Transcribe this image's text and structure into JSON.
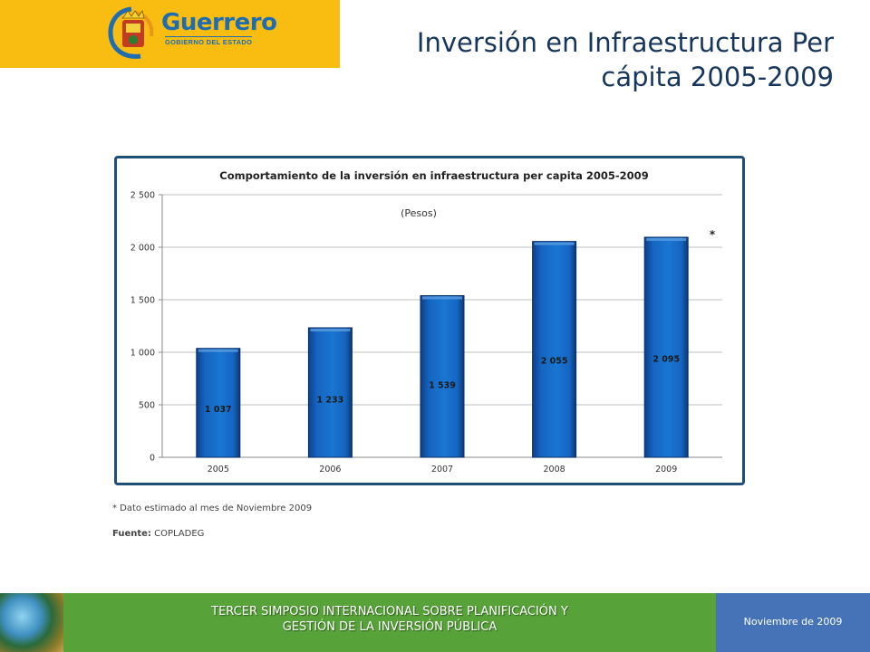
{
  "header": {
    "logo_text": "Guerrero",
    "logo_subtext": "GOBIERNO DEL ESTADO",
    "title_line1": "Inversión en Infraestructura Per",
    "title_line2": "cápita 2005-2009"
  },
  "chart_data": {
    "type": "bar",
    "title": "Comportamiento de la inversión en infraestructura per capita 2005-2009",
    "unit_label": "(Pesos)",
    "categories": [
      "2005",
      "2006",
      "2007",
      "2008",
      "2009"
    ],
    "values": [
      1037,
      1233,
      1539,
      2055,
      2095
    ],
    "value_labels": [
      "1 037",
      "1 233",
      "1 539",
      "2 055",
      "2 095"
    ],
    "ylim": [
      0,
      2500
    ],
    "yticks": [
      0,
      500,
      1000,
      1500,
      2000,
      2500
    ],
    "ytick_labels": [
      "0",
      "500",
      "1 000",
      "1 500",
      "2 000",
      "2 500"
    ],
    "grid": true,
    "bar_color": "#1565c0",
    "annotation": "*",
    "xlabel": "",
    "ylabel": ""
  },
  "notes": {
    "footnote": "* Dato estimado al mes de Noviembre 2009",
    "source_label": "Fuente:",
    "source_value": "COPLADEG"
  },
  "footer": {
    "title_line1": "TERCER SIMPOSIO INTERNACIONAL SOBRE PLANIFICACIÓN Y",
    "title_line2": "GESTIÓN DE LA INVERSIÓN PÚBLICA",
    "date": "Noviembre de 2009"
  }
}
